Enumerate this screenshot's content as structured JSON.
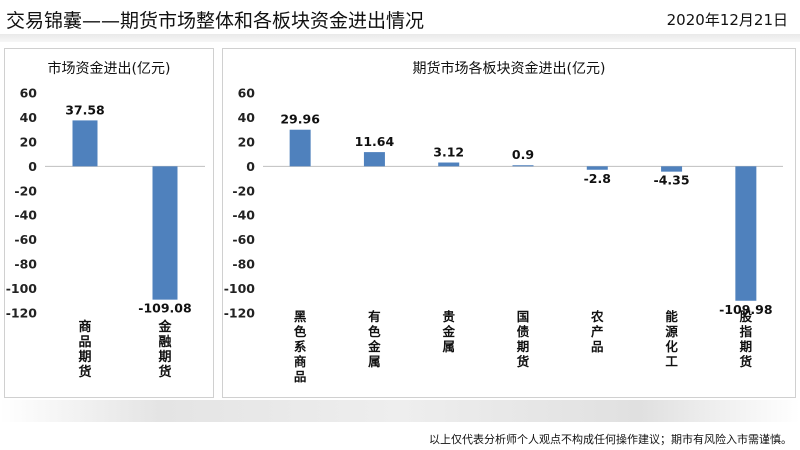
{
  "header": {
    "title": "交易锦囊——期货市场整体和各板块资金进出情况",
    "date": "2020年12月21日"
  },
  "footer": {
    "disclaimer": "以上仅代表分析师个人观点不构成任何操作建议；期市有风险入市需谨慎。"
  },
  "colors": {
    "bar": "#4f81bd"
  },
  "chart_data": [
    {
      "type": "bar",
      "title": "市场资金进出(亿元)",
      "categories": [
        "商品期货",
        "金融期货"
      ],
      "values": [
        37.58,
        -109.08
      ],
      "data_labels": [
        "37.58",
        "-109.08"
      ],
      "ylim": [
        -120,
        60
      ],
      "yticks": [
        60,
        40,
        20,
        0,
        -20,
        -40,
        -60,
        -80,
        -100,
        -120
      ],
      "grid": false,
      "legend": "none"
    },
    {
      "type": "bar",
      "title": "期货市场各板块资金进出(亿元)",
      "categories": [
        "黑色系商品",
        "有色金属",
        "贵金属",
        "国债期货",
        "农产品",
        "能源化工",
        "股指期货"
      ],
      "values": [
        29.96,
        11.64,
        3.12,
        0.9,
        -2.8,
        -4.35,
        -109.98
      ],
      "data_labels": [
        "29.96",
        "11.64",
        "3.12",
        "0.9",
        "-2.8",
        "-4.35",
        "-109.98"
      ],
      "ylim": [
        -120,
        60
      ],
      "yticks": [
        60,
        40,
        20,
        0,
        -20,
        -40,
        -60,
        -80,
        -100,
        -120
      ],
      "grid": false,
      "legend": "none"
    }
  ]
}
